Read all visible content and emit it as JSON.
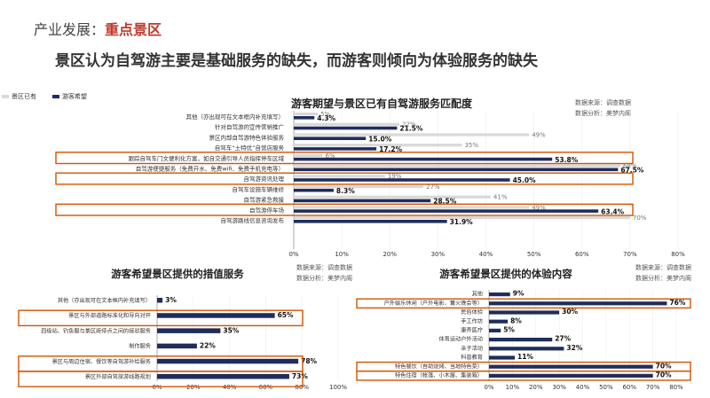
{
  "header": {
    "prefix": "产业发展：",
    "accent": "重点景区"
  },
  "headline": "景区认为自驾游主要是基础服务的缺失，而游客则倾向为体验服务的缺失",
  "colors": {
    "existing": "#d9d9d9",
    "expected": "#1f2d5c",
    "highlight": "#d35400",
    "accent": "#c0392b"
  },
  "source_labels": {
    "data_source": "数据来源：调查数据",
    "data_analysis": "数据分析：美梦内阁"
  },
  "chart_data": [
    {
      "type": "bar",
      "title": "游客期望与景区已有自驾游服务匹配度",
      "legend": [
        "景区已有",
        "游客希望"
      ],
      "legend_position": "top-left",
      "categories": [
        "其他（亦出现可在文本框内补充填写）",
        "针对自驾游的宣传营销推广",
        "景区内部自驾游特色体验服务",
        "自驾车“土特优”自营店服务",
        "跟踪自驾车门文便利化方案，如自交通引导人员指挥停车区域",
        "自驾游便捷服务（免费开水、免费wifi、免费手机充电等）",
        "自驾游资讯处理",
        "自驾车设施车辆维修",
        "自驾游紧急救援",
        "自驾游停车场",
        "自驾游路线信息咨询发布"
      ],
      "series": [
        {
          "name": "景区已有",
          "values": [
            5,
            22,
            49,
            35,
            6,
            68,
            19,
            27,
            41,
            49,
            70
          ]
        },
        {
          "name": "游客希望",
          "values": [
            4.3,
            21.5,
            15.0,
            17.2,
            53.8,
            67.5,
            45.0,
            8.3,
            28.5,
            63.4,
            31.9
          ]
        }
      ],
      "value_labels_existing": [
        "5%",
        "22%",
        "49%",
        "35%",
        "6%",
        "68%",
        "19%",
        "27%",
        "41%",
        "49%",
        "70%"
      ],
      "value_labels_expected": [
        "4.3%",
        "21.5%",
        "15.0%",
        "17.2%",
        "53.8%",
        "67.5%",
        "45.0%",
        "8.3%",
        "28.5%",
        "63.4%",
        "31.9%"
      ],
      "highlighted": [
        4,
        6,
        9
      ],
      "xlim": [
        0,
        80
      ],
      "xticks": [
        "0%",
        "10%",
        "20%",
        "30%",
        "40%",
        "50%",
        "60%",
        "70%",
        "80%"
      ]
    },
    {
      "type": "bar",
      "title": "游客希望景区提供的措值服务",
      "categories": [
        "其他（亦出现可在文本框内补充填写）",
        "景区与外部道路标准化和导向对开",
        "四级站、钓鱼服与景区距停点之间的接驳服务",
        "制作服务",
        "景区与周边住宿、餐饮等自驾游补给服务",
        "景区外部自驾旅游线路规划"
      ],
      "values": [
        3,
        65,
        35,
        22,
        78,
        73
      ],
      "value_labels": [
        "3%",
        "65%",
        "35%",
        "22%",
        "78%",
        "73%"
      ],
      "highlighted": [
        1,
        4,
        5
      ],
      "xlim": [
        0,
        100
      ],
      "xticks": [
        "0%",
        "20%",
        "40%",
        "60%",
        "80%",
        "100%"
      ]
    },
    {
      "type": "bar",
      "title": "游客希望景区提供的体验内容",
      "categories": [
        "其他",
        "户外娱乐休闲（户外电影、篝火晚会等）",
        "民俗体验",
        "手工作坊",
        "康养医疗",
        "体育运动户外活动",
        "亲子活动",
        "科普教育",
        "特色餐饮（自助烧烤、当地特色菜）",
        "特色住宿（帐篷、小木屋、集装箱）"
      ],
      "values": [
        9,
        76,
        30,
        8,
        5,
        27,
        32,
        11,
        70,
        70
      ],
      "value_labels": [
        "9%",
        "76%",
        "30%",
        "8%",
        "5%",
        "27%",
        "32%",
        "11%",
        "70%",
        "70%"
      ],
      "highlighted": [
        1,
        8,
        9
      ],
      "xlim": [
        0,
        80
      ],
      "xticks": [
        "0%",
        "10%",
        "20%",
        "30%",
        "40%",
        "50%",
        "60%",
        "70%",
        "80%"
      ]
    }
  ]
}
